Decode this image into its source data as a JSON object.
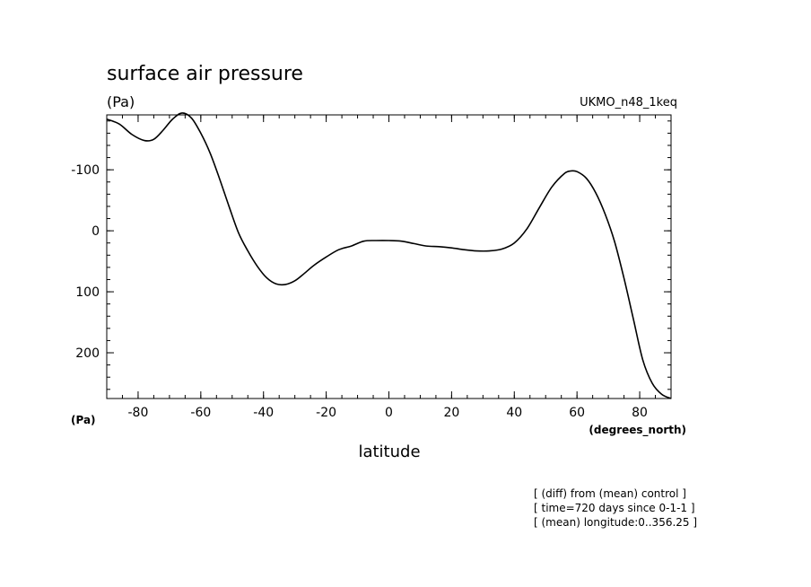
{
  "chart_data": {
    "type": "line",
    "title": "surface air pressure",
    "y_unit_top": "(Pa)",
    "y_unit_bottom": "(Pa)",
    "model_label": "UKMO_n48_1keq",
    "xlabel": "latitude",
    "x_unit": "(degrees_north)",
    "xlim": [
      -90,
      90
    ],
    "ylim": [
      -190,
      275
    ],
    "y_inverted": true,
    "x_ticks": [
      -80,
      -60,
      -40,
      -20,
      0,
      20,
      40,
      60,
      80
    ],
    "x_tick_labels": [
      "-80",
      "-60",
      "-40",
      "-20",
      "0",
      "20",
      "40",
      "60",
      "80"
    ],
    "y_ticks": [
      -100,
      0,
      100,
      200
    ],
    "y_tick_labels": [
      "-100",
      "0",
      "100",
      "200"
    ],
    "grid": false,
    "series": [
      {
        "x": [
          -90,
          -86,
          -82,
          -78,
          -75,
          -72,
          -69,
          -66,
          -63,
          -60,
          -57,
          -54,
          -51,
          -48,
          -45,
          -42,
          -39,
          -36,
          -33,
          -30,
          -27,
          -24,
          -20,
          -16,
          -12,
          -8,
          -4,
          0,
          4,
          8,
          12,
          16,
          20,
          24,
          28,
          32,
          36,
          40,
          44,
          48,
          52,
          56,
          58,
          60,
          63,
          66,
          69,
          72,
          75,
          78,
          81,
          84,
          87,
          90
        ],
        "y": [
          -183,
          -175,
          -158,
          -148,
          -150,
          -165,
          -183,
          -193,
          -185,
          -160,
          -127,
          -85,
          -40,
          3,
          33,
          58,
          77,
          87,
          88,
          82,
          70,
          57,
          43,
          31,
          25,
          17,
          16,
          16,
          17,
          21,
          25,
          26,
          28,
          31,
          33,
          33,
          30,
          20,
          -3,
          -38,
          -72,
          -94,
          -98,
          -97,
          -86,
          -62,
          -27,
          18,
          78,
          145,
          212,
          250,
          268,
          275
        ]
      }
    ],
    "footnotes": [
      "[ (diff) from (mean) control ]",
      "[ time=720 days since 0-1-1 ]",
      "[ (mean) longitude:0..356.25 ]"
    ]
  }
}
